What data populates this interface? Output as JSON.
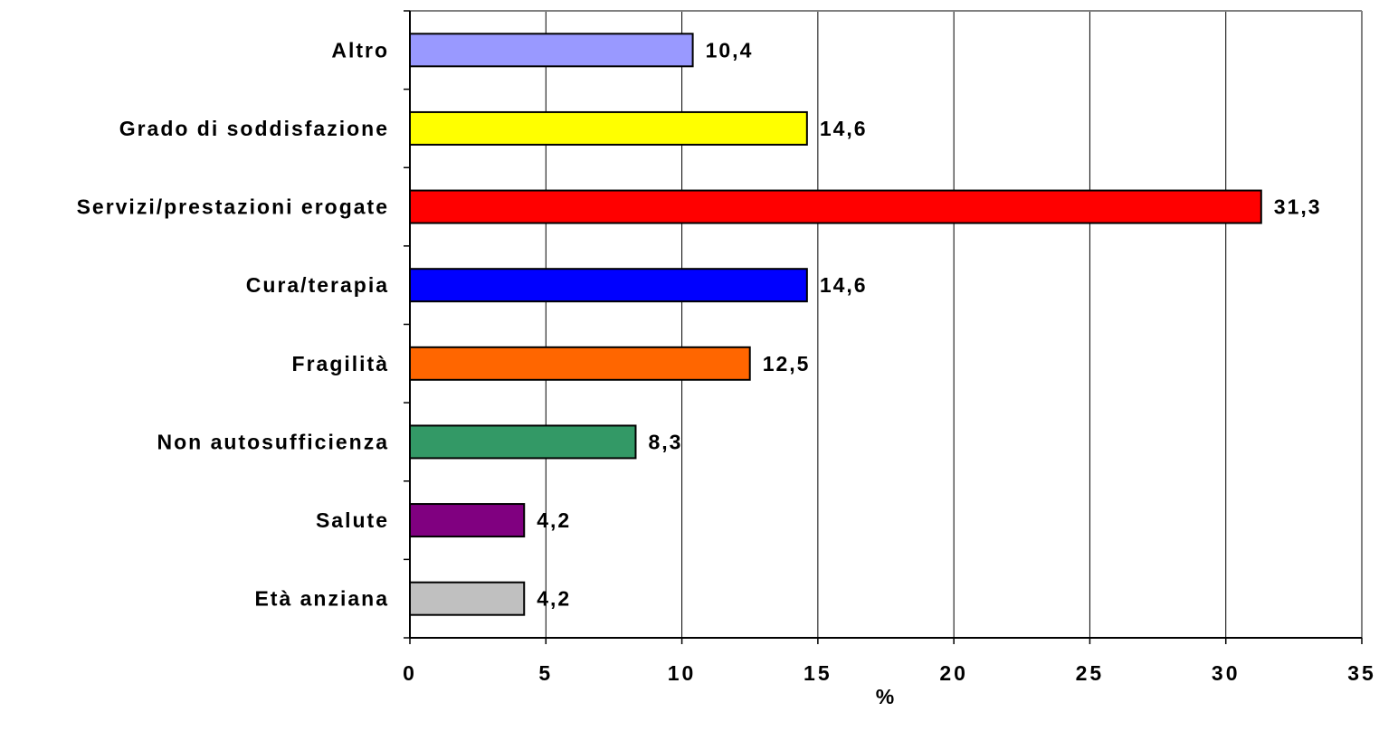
{
  "chart_data": {
    "type": "bar",
    "orientation": "horizontal",
    "categories": [
      "Altro",
      "Grado di soddisfazione",
      "Servizi/prestazioni erogate",
      "Cura/terapia",
      "Fragilità",
      "Non autosufficienza",
      "Salute",
      "Età anziana"
    ],
    "values": [
      10.4,
      14.6,
      31.3,
      14.6,
      12.5,
      8.3,
      4.2,
      4.2
    ],
    "value_labels": [
      "10,4",
      "14,6",
      "31,3",
      "14,6",
      "12,5",
      "8,3",
      "4,2",
      "4,2"
    ],
    "colors": [
      "#9999FF",
      "#FFFF00",
      "#FF0000",
      "#0000FF",
      "#FF6600",
      "#339966",
      "#800080",
      "#C0C0C0"
    ],
    "xlabel": "%",
    "xlim": [
      0,
      35
    ],
    "xticks": [
      0,
      5,
      10,
      15,
      20,
      25,
      30,
      35
    ],
    "xtick_labels": [
      "0",
      "5",
      "10",
      "15",
      "20",
      "25",
      "30",
      "35"
    ],
    "grid": "vertical",
    "legend": "none"
  }
}
